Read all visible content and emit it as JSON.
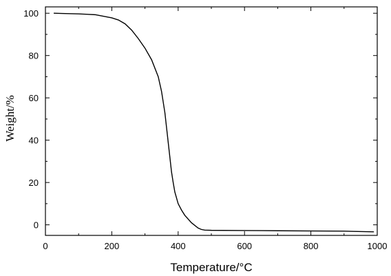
{
  "chart_data": {
    "type": "line",
    "title": "",
    "xlabel": "Temperature/°C",
    "ylabel": "Weight/%",
    "xlim": [
      0,
      1000
    ],
    "ylim": [
      -5,
      103
    ],
    "x_ticks": [
      0,
      200,
      400,
      600,
      800,
      1000
    ],
    "y_ticks": [
      0,
      20,
      40,
      60,
      80,
      100
    ],
    "grid": false,
    "legend": "none",
    "series": [
      {
        "color": "#000000",
        "x": [
          25,
          50,
          100,
          150,
          200,
          220,
          240,
          260,
          280,
          300,
          320,
          340,
          350,
          360,
          365,
          370,
          375,
          380,
          385,
          390,
          400,
          410,
          420,
          440,
          460,
          470,
          480,
          500,
          600,
          700,
          800,
          900,
          990
        ],
        "y": [
          100,
          99.9,
          99.7,
          99.3,
          97.8,
          96.8,
          95.0,
          92.0,
          88.0,
          83.5,
          78.0,
          70.0,
          63.0,
          53.0,
          46.0,
          39.0,
          32.0,
          25.0,
          20.0,
          15.5,
          10.0,
          7.0,
          4.5,
          1.0,
          -1.5,
          -2.2,
          -2.5,
          -2.6,
          -2.7,
          -2.8,
          -2.9,
          -3.0,
          -3.3
        ]
      }
    ]
  }
}
